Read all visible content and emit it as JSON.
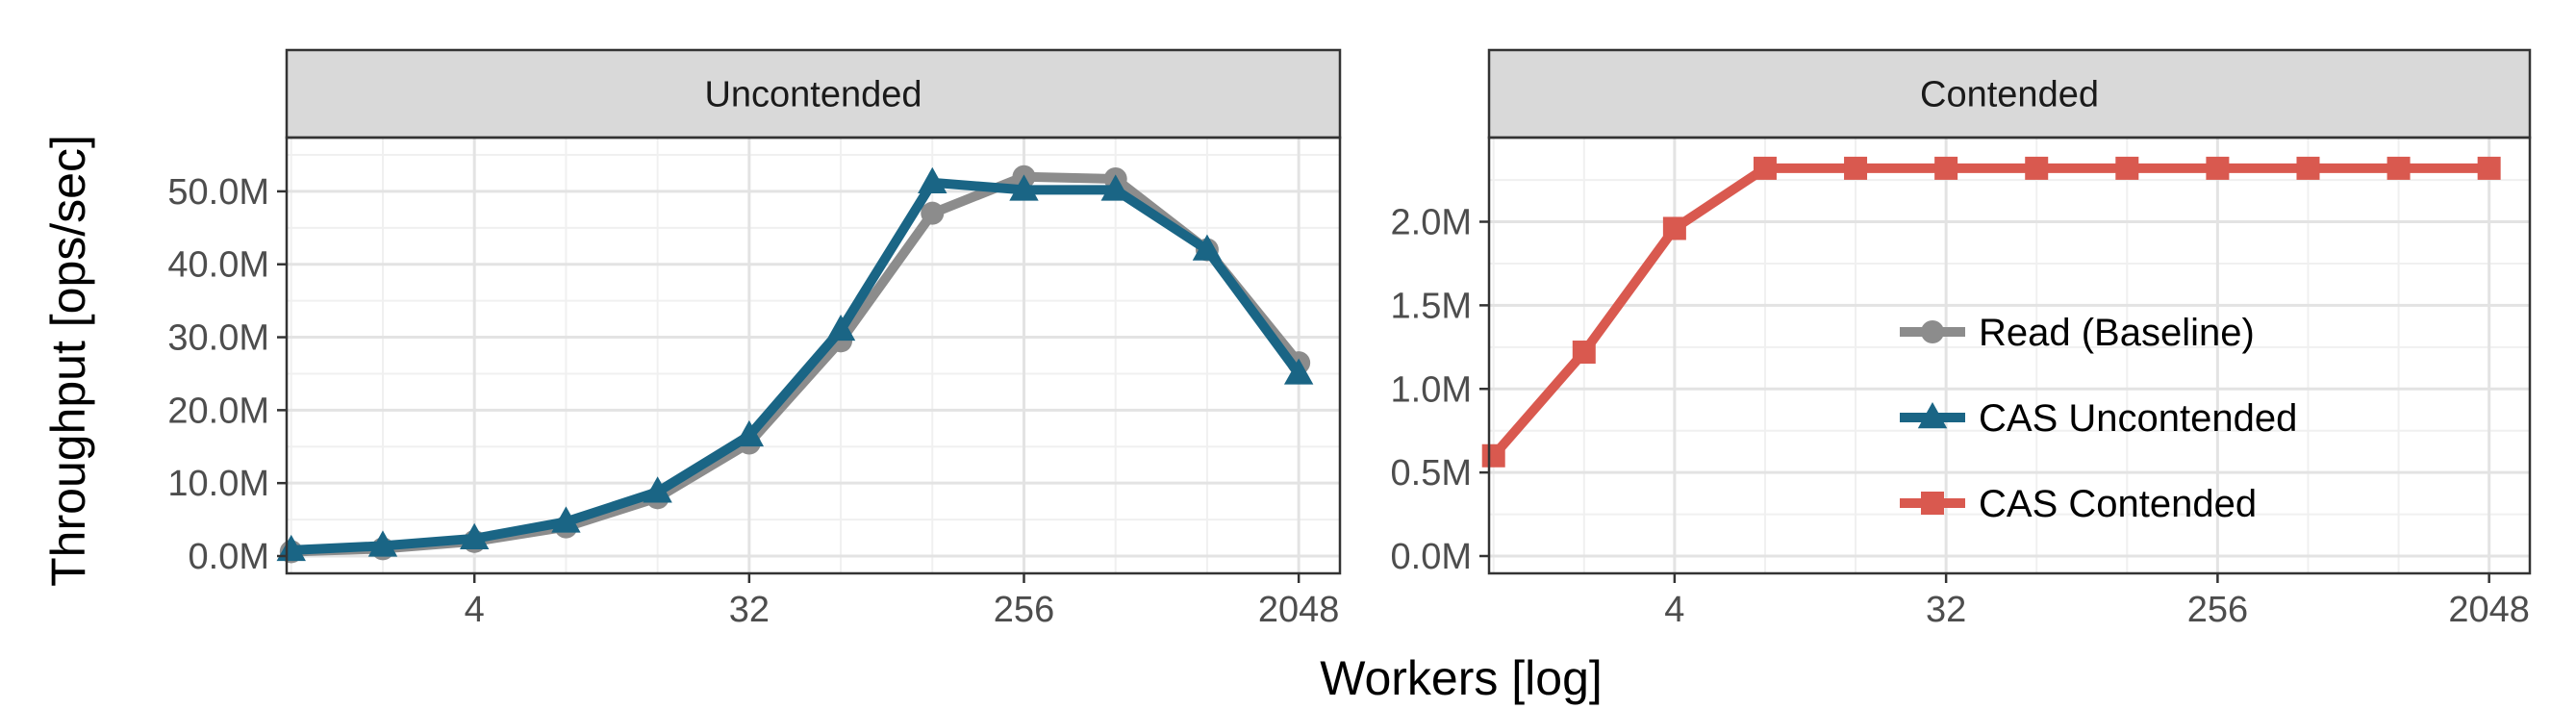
{
  "chart_data": {
    "type": "line",
    "xlabel": "Workers [log]",
    "ylabel": "Throughput [ops/sec]",
    "x_scale": "log2",
    "x_ticks": [
      4,
      32,
      256,
      2048
    ],
    "x_tick_labels": [
      "4",
      "32",
      "256",
      "2048"
    ],
    "grid": true,
    "legend_position": "inside-right",
    "legend": [
      {
        "name": "Read (Baseline)",
        "color": "#8c8c8c",
        "marker": "circle"
      },
      {
        "name": "CAS Uncontended",
        "color": "#1a6585",
        "marker": "triangle"
      },
      {
        "name": "CAS Contended",
        "color": "#d9594f",
        "marker": "square"
      }
    ],
    "panels": [
      {
        "title": "Uncontended",
        "ylim": [
          0,
          55000000
        ],
        "y_ticks": [
          0,
          10000000,
          20000000,
          30000000,
          40000000,
          50000000
        ],
        "y_tick_labels": [
          "0.0M",
          "10.0M",
          "20.0M",
          "30.0M",
          "40.0M",
          "50.0M"
        ],
        "series": [
          {
            "name": "Read (Baseline)",
            "color": "#8c8c8c",
            "marker": "circle",
            "x": [
              1,
              2,
              4,
              8,
              16,
              32,
              64,
              128,
              256,
              512,
              1024,
              2048
            ],
            "values": [
              600000,
              1000000,
              2000000,
              4000000,
              8000000,
              15500000,
              29500000,
              47000000,
              52000000,
              51700000,
              42000000,
              26500000
            ]
          },
          {
            "name": "CAS Uncontended",
            "color": "#1a6585",
            "marker": "triangle",
            "x": [
              1,
              2,
              4,
              8,
              16,
              32,
              64,
              128,
              256,
              512,
              1024,
              2048
            ],
            "values": [
              800000,
              1400000,
              2400000,
              4700000,
              8800000,
              16500000,
              31000000,
              51200000,
              50200000,
              50200000,
              42000000,
              25000000
            ]
          }
        ]
      },
      {
        "title": "Contended",
        "ylim": [
          0,
          2.4
        ],
        "y_ticks": [
          0,
          0.5,
          1.0,
          1.5,
          2.0
        ],
        "y_tick_labels": [
          "0.0M",
          "0.5M",
          "1.0M",
          "1.5M",
          "2.0M"
        ],
        "series": [
          {
            "name": "CAS Contended",
            "color": "#d9594f",
            "marker": "square",
            "x": [
              1,
              2,
              4,
              8,
              16,
              32,
              64,
              128,
              256,
              512,
              1024,
              2048
            ],
            "values": [
              0.6,
              1.22,
              1.96,
              2.32,
              2.32,
              2.32,
              2.32,
              2.32,
              2.32,
              2.32,
              2.32,
              2.32
            ]
          }
        ]
      }
    ]
  }
}
